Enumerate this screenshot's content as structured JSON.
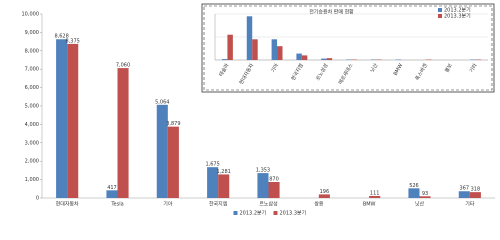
{
  "chart_data": [
    {
      "type": "bar",
      "categories": [
        "현대자동차",
        "Tesla",
        "기아",
        "한국지엠",
        "르노삼성",
        "쌍용",
        "BMW",
        "닛산",
        "기타"
      ],
      "series": [
        {
          "name": "2013.2분기",
          "color": "#4f81bd",
          "values": [
            8628,
            417,
            5064,
            1675,
            1353,
            null,
            null,
            526,
            367
          ],
          "value_labels": [
            "8,628",
            "417",
            "5,064",
            "1,675",
            "1,353",
            null,
            null,
            "526",
            "367"
          ]
        },
        {
          "name": "2013.3분기",
          "color": "#c0504d",
          "values": [
            8375,
            7060,
            3879,
            1281,
            870,
            196,
            111,
            93,
            318
          ],
          "value_labels": [
            "8,375",
            "7,060",
            "3,879",
            "1,281",
            "870",
            "196",
            "111",
            "93",
            "318"
          ]
        }
      ],
      "ylim": [
        0,
        10000
      ],
      "yticks": [
        {
          "value": 0,
          "label": "0"
        },
        {
          "value": 1000,
          "label": "1,000"
        },
        {
          "value": 2000,
          "label": "2,000"
        },
        {
          "value": 3000,
          "label": "3,000"
        },
        {
          "value": 4000,
          "label": "4,000"
        },
        {
          "value": 5000,
          "label": "5,000"
        },
        {
          "value": 6000,
          "label": "6,000"
        },
        {
          "value": 7000,
          "label": "7,000"
        },
        {
          "value": 8000,
          "label": "8,000"
        },
        {
          "value": 9000,
          "label": "9,000"
        },
        {
          "value": 10000,
          "label": "10,000"
        }
      ],
      "grid": false,
      "legend": "bottom"
    },
    {
      "type": "bar",
      "title": "전기승용차 판매 현황",
      "categories": [
        "테슬라",
        "현대자동차",
        "기아",
        "한국지엠",
        "르노삼성",
        "메르세데스",
        "닛산",
        "BMW",
        "폭스바겐",
        "볼보",
        "기타"
      ],
      "series": [
        {
          "name": "2013.2분기",
          "color": "#4f81bd",
          "values": [
            2,
            95,
            45,
            14,
            3,
            1,
            1,
            1,
            0,
            0,
            1
          ]
        },
        {
          "name": "2013.3분기",
          "color": "#c0504d",
          "values": [
            55,
            45,
            30,
            10,
            4,
            1,
            1,
            0,
            1,
            0,
            1
          ]
        }
      ],
      "ylim": [
        0,
        100
      ],
      "yticks": [
        0,
        50,
        100
      ],
      "grid": true,
      "legend": "top"
    }
  ]
}
